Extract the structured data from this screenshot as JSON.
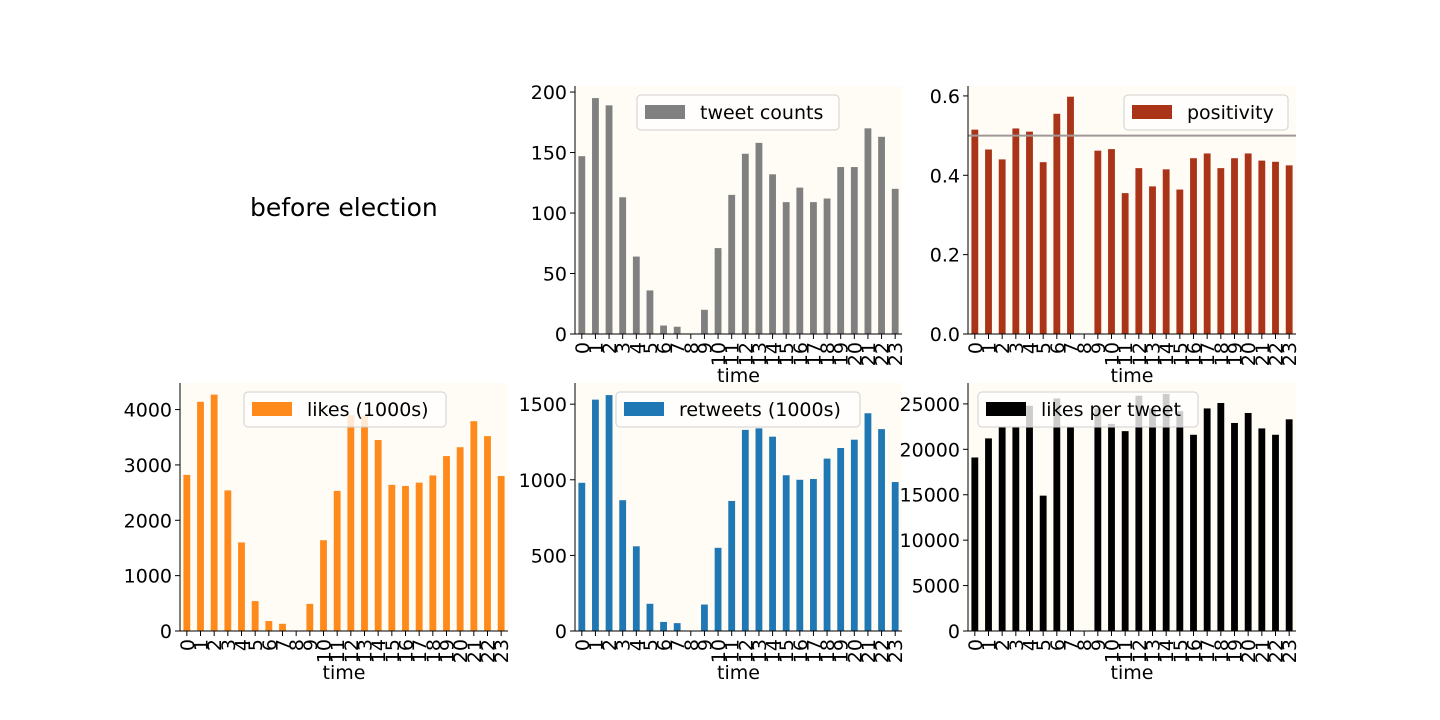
{
  "figure": {
    "title": "before election"
  },
  "chart_data": [
    {
      "id": "tweet-counts",
      "type": "bar",
      "title": "",
      "xlabel": "time",
      "ylabel": "",
      "categories": [
        "0",
        "1",
        "2",
        "3",
        "4",
        "5",
        "6",
        "7",
        "8",
        "9",
        "10",
        "11",
        "12",
        "13",
        "14",
        "15",
        "16",
        "17",
        "18",
        "19",
        "20",
        "21",
        "22",
        "23"
      ],
      "series": [
        {
          "name": "tweet counts",
          "color": "#808080",
          "values": [
            147,
            195,
            189,
            113,
            64,
            36,
            7,
            6,
            0,
            20,
            71,
            115,
            149,
            158,
            132,
            109,
            121,
            109,
            112,
            138,
            138,
            170,
            163,
            120
          ]
        }
      ],
      "ylim": [
        0,
        205
      ],
      "yticks": [
        0,
        50,
        100,
        150,
        200
      ],
      "legend": "top-center",
      "grid": false,
      "background": "#fffbf5"
    },
    {
      "id": "positivity",
      "type": "bar",
      "title": "",
      "xlabel": "time",
      "ylabel": "",
      "categories": [
        "0",
        "1",
        "2",
        "3",
        "4",
        "5",
        "6",
        "7",
        "8",
        "9",
        "10",
        "11",
        "12",
        "13",
        "14",
        "15",
        "16",
        "17",
        "18",
        "19",
        "20",
        "21",
        "22",
        "23"
      ],
      "series": [
        {
          "name": "positivity",
          "color": "#a93418",
          "values": [
            0.515,
            0.465,
            0.44,
            0.518,
            0.51,
            0.433,
            0.555,
            0.598,
            0.0,
            0.462,
            0.466,
            0.355,
            0.418,
            0.372,
            0.415,
            0.364,
            0.443,
            0.455,
            0.418,
            0.443,
            0.455,
            0.437,
            0.434,
            0.425
          ]
        }
      ],
      "reference_line": {
        "value": 0.5,
        "color": "#a09898"
      },
      "ylim": [
        0,
        0.625
      ],
      "yticks": [
        0.0,
        0.2,
        0.4,
        0.6
      ],
      "legend": "top-right",
      "grid": false,
      "background": "#fffbf5"
    },
    {
      "id": "likes",
      "type": "bar",
      "title": "",
      "xlabel": "time",
      "ylabel": "",
      "categories": [
        "0",
        "1",
        "2",
        "3",
        "4",
        "5",
        "6",
        "7",
        "8",
        "9",
        "10",
        "11",
        "12",
        "13",
        "14",
        "15",
        "16",
        "17",
        "18",
        "19",
        "20",
        "21",
        "22",
        "23"
      ],
      "series": [
        {
          "name": "likes (1000s)",
          "color": "#ff8a1c",
          "values": [
            2820,
            4140,
            4270,
            2540,
            1600,
            540,
            180,
            130,
            0,
            490,
            1640,
            2530,
            3900,
            3880,
            3450,
            2640,
            2620,
            2680,
            2810,
            3160,
            3320,
            3790,
            3520,
            2800
          ]
        }
      ],
      "ylim": [
        0,
        4480
      ],
      "yticks": [
        0,
        1000,
        2000,
        3000,
        4000
      ],
      "legend": "top-right",
      "grid": false,
      "background": "#fffbf5"
    },
    {
      "id": "retweets",
      "type": "bar",
      "title": "",
      "xlabel": "time",
      "ylabel": "",
      "categories": [
        "0",
        "1",
        "2",
        "3",
        "4",
        "5",
        "6",
        "7",
        "8",
        "9",
        "10",
        "11",
        "12",
        "13",
        "14",
        "15",
        "16",
        "17",
        "18",
        "19",
        "20",
        "21",
        "22",
        "23"
      ],
      "series": [
        {
          "name": "retweets (1000s)",
          "color": "#1f77b4",
          "values": [
            980,
            1530,
            1560,
            865,
            560,
            180,
            60,
            52,
            0,
            175,
            550,
            860,
            1330,
            1340,
            1285,
            1030,
            1000,
            1005,
            1140,
            1210,
            1265,
            1440,
            1335,
            985
          ]
        }
      ],
      "ylim": [
        0,
        1640
      ],
      "yticks": [
        0,
        500,
        1000,
        1500
      ],
      "legend": "top-right",
      "grid": false,
      "background": "#fffbf5"
    },
    {
      "id": "likes-per-tweet",
      "type": "bar",
      "title": "",
      "xlabel": "time",
      "ylabel": "",
      "categories": [
        "0",
        "1",
        "2",
        "3",
        "4",
        "5",
        "6",
        "7",
        "8",
        "9",
        "10",
        "11",
        "12",
        "13",
        "14",
        "15",
        "16",
        "17",
        "18",
        "19",
        "20",
        "21",
        "22",
        "23"
      ],
      "series": [
        {
          "name": "likes per tweet",
          "color": "#000000",
          "values": [
            19100,
            21200,
            22500,
            22400,
            24800,
            14900,
            25600,
            22400,
            0,
            24500,
            22800,
            22000,
            25900,
            24500,
            26100,
            24200,
            21600,
            24500,
            25100,
            22900,
            24000,
            22300,
            21600,
            23300
          ]
        }
      ],
      "ylim": [
        0,
        27300
      ],
      "yticks": [
        0,
        5000,
        10000,
        15000,
        20000,
        25000
      ],
      "legend": "top-left",
      "grid": false,
      "background": "#fffbf5"
    }
  ]
}
